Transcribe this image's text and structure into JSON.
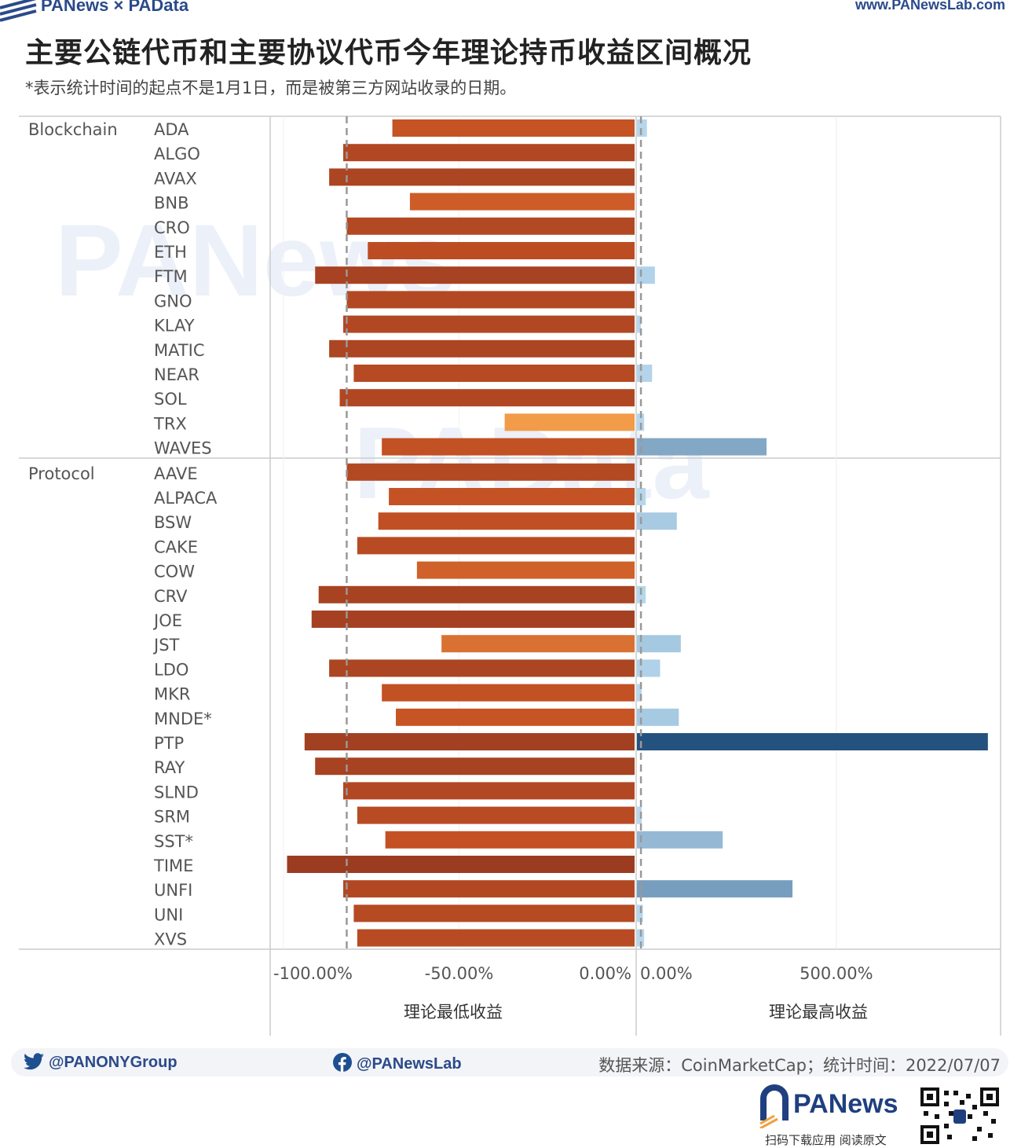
{
  "header": {
    "brand": "PANews × PAData",
    "site": "www.PANewsLab.com",
    "title": "主要公链代币和主要协议代币今年理论持币收益区间概况",
    "subtitle": "*表示统计时间的起点不是1月1日，而是被第三方网站收录的日期。"
  },
  "watermarks": {
    "top": "PANews",
    "middle": "PAData"
  },
  "chart_data": {
    "type": "bar",
    "orientation": "horizontal",
    "groups": [
      {
        "name": "Blockchain",
        "categories": [
          "ADA",
          "ALGO",
          "AVAX",
          "BNB",
          "CRO",
          "ETH",
          "FTM",
          "GNO",
          "KLAY",
          "MATIC",
          "NEAR",
          "SOL",
          "TRX",
          "WAVES"
        ]
      },
      {
        "name": "Protocol",
        "categories": [
          "AAVE",
          "ALPACA",
          "BSW",
          "CAKE",
          "COW",
          "CRV",
          "JOE",
          "JST",
          "LDO",
          "MKR",
          "MNDE*",
          "PTP",
          "RAY",
          "SLND",
          "SRM",
          "SST*",
          "TIME",
          "UNFI",
          "UNI",
          "XVS"
        ]
      }
    ],
    "series": [
      {
        "name": "理论最低收益",
        "unit": "%",
        "xlim": [
          -100,
          0
        ],
        "ticks": [
          "-100.00%",
          "-50.00%",
          "0.00%"
        ],
        "tick_values": [
          -100,
          -50,
          0
        ],
        "reference_line": -82,
        "values": [
          -69,
          -83,
          -87,
          -64,
          -82,
          -76,
          -91,
          -82,
          -83,
          -87,
          -80,
          -84,
          -37,
          -72,
          -82,
          -70,
          -73,
          -79,
          -62,
          -90,
          -92,
          -55,
          -87,
          -72,
          -68,
          -94,
          -91,
          -83,
          -79,
          -71,
          -99,
          -83,
          -80,
          -79
        ]
      },
      {
        "name": "理论最高收益",
        "unit": "%",
        "xlim": [
          0,
          900
        ],
        "ticks": [
          "0.00%",
          "500.00%"
        ],
        "tick_values": [
          0,
          500
        ],
        "reference_line": 10,
        "values": [
          25,
          0,
          0,
          0,
          0,
          0,
          45,
          0,
          10,
          0,
          38,
          0,
          18,
          325,
          0,
          22,
          100,
          0,
          0,
          22,
          0,
          110,
          58,
          12,
          105,
          880,
          0,
          0,
          12,
          215,
          0,
          390,
          15,
          18
        ]
      }
    ],
    "xlabel_left": "理论最低收益",
    "xlabel_right": "理论最高收益",
    "grid": true
  },
  "footer": {
    "twitter": "@PANONYGroup",
    "facebook": "@PANewsLab",
    "source": "数据来源：CoinMarketCap；统计时间：2022/07/07",
    "logo_text": "PANews",
    "logo_caption": "扫码下载应用  阅读原文"
  },
  "colors": {
    "neg_dark": "#9a3b21",
    "neg_mid": "#c85424",
    "neg_light": "#f5a04a",
    "pos_light": "#b9daf0",
    "pos_dark": "#24527f",
    "brand": "#2a4a8a"
  }
}
